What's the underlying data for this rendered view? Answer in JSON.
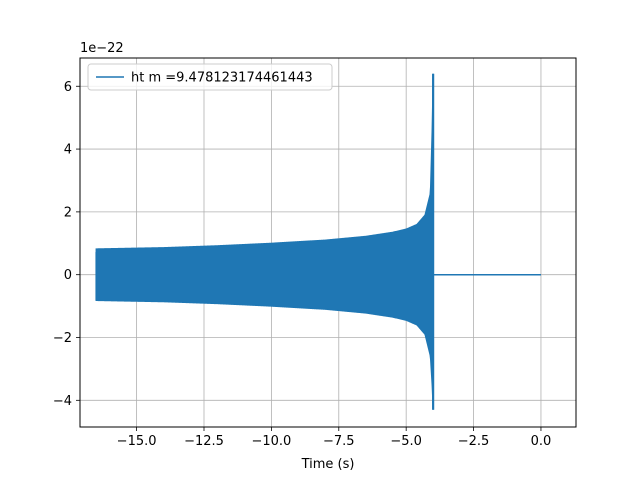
{
  "chart_data": {
    "type": "line",
    "title": "",
    "xlabel": "Time (s)",
    "ylabel": "",
    "y_offset_label": "1e−22",
    "y_scale_exponent": -22,
    "xlim": [
      -17.1,
      1.3
    ],
    "ylim": [
      -4.85,
      6.9
    ],
    "x_ticks": [
      -15.0,
      -12.5,
      -10.0,
      -7.5,
      -5.0,
      -2.5,
      0.0
    ],
    "x_tick_labels": [
      "−15.0",
      "−12.5",
      "−10.0",
      "−7.5",
      "−5.0",
      "−2.5",
      "0.0"
    ],
    "y_ticks": [
      -4,
      -2,
      0,
      2,
      4,
      6
    ],
    "y_tick_labels": [
      "−4",
      "−2",
      "0",
      "2",
      "4",
      "6"
    ],
    "grid": true,
    "legend_position": "top-left",
    "colors": {
      "series": "#1f77b4",
      "grid": "#b0b0b0",
      "axes": "#000000"
    },
    "series": [
      {
        "name": "ht m =9.478123174461443",
        "description_points": {
          "x": [
            -16.5,
            -14.0,
            -12.0,
            -10.0,
            -8.0,
            -6.5,
            -5.5,
            -5.0,
            -4.6,
            -4.3,
            -4.1,
            -4.03,
            -4.0,
            -3.98,
            -3.96,
            -3.9,
            0.0
          ],
          "envelope_upper": [
            0.82,
            0.86,
            0.92,
            1.0,
            1.1,
            1.22,
            1.35,
            1.45,
            1.6,
            1.9,
            2.6,
            4.8,
            6.4,
            0.0,
            0.0,
            0.0,
            0.0
          ],
          "envelope_lower": [
            -0.82,
            -0.86,
            -0.92,
            -1.0,
            -1.1,
            -1.22,
            -1.35,
            -1.45,
            -1.6,
            -1.9,
            -2.6,
            -3.6,
            -4.3,
            0.0,
            0.0,
            0.0,
            0.0
          ]
        }
      }
    ]
  }
}
